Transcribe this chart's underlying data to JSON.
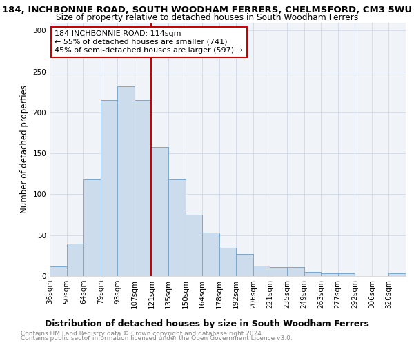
{
  "title": "184, INCHBONNIE ROAD, SOUTH WOODHAM FERRERS, CHELMSFORD, CM3 5WU",
  "subtitle": "Size of property relative to detached houses in South Woodham Ferrers",
  "xlabel": "Distribution of detached houses by size in South Woodham Ferrers",
  "ylabel": "Number of detached properties",
  "bin_labels": [
    "36sqm",
    "50sqm",
    "64sqm",
    "79sqm",
    "93sqm",
    "107sqm",
    "121sqm",
    "135sqm",
    "150sqm",
    "164sqm",
    "178sqm",
    "192sqm",
    "206sqm",
    "221sqm",
    "235sqm",
    "249sqm",
    "263sqm",
    "277sqm",
    "292sqm",
    "306sqm",
    "320sqm"
  ],
  "bar_heights": [
    12,
    40,
    118,
    215,
    232,
    215,
    158,
    118,
    75,
    53,
    35,
    27,
    13,
    11,
    11,
    5,
    3,
    3,
    0,
    0,
    3
  ],
  "bar_color": "#ccdcec",
  "bar_edge_color": "#7aa8cc",
  "vline_x": 6,
  "annotation_text": "184 INCHBONNIE ROAD: 114sqm\n← 55% of detached houses are smaller (741)\n45% of semi-detached houses are larger (597) →",
  "annotation_box_color": "#ffffff",
  "annotation_box_edge_color": "#cc0000",
  "vline_color": "#cc0000",
  "ylim": [
    0,
    310
  ],
  "yticks": [
    0,
    50,
    100,
    150,
    200,
    250,
    300
  ],
  "footnote1": "Contains HM Land Registry data © Crown copyright and database right 2024.",
  "footnote2": "Contains public sector information licensed under the Open Government Licence v3.0.",
  "title_fontsize": 9.5,
  "subtitle_fontsize": 8.8,
  "xlabel_fontsize": 9,
  "ylabel_fontsize": 8.5,
  "tick_fontsize": 7.5,
  "annot_fontsize": 8,
  "footnote_fontsize": 6.5
}
